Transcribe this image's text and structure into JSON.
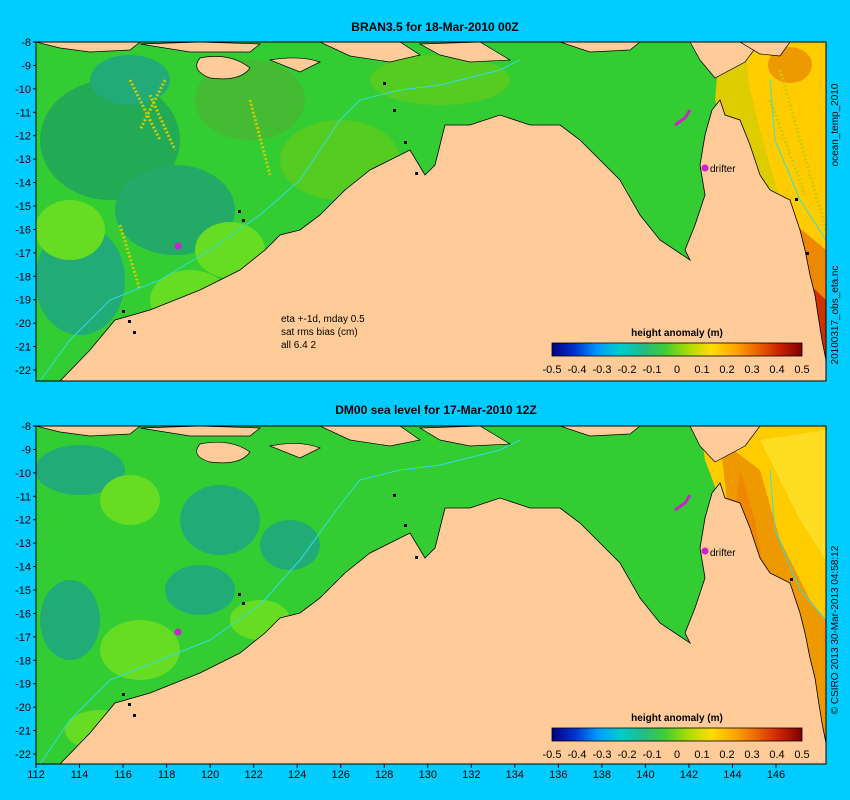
{
  "colors": {
    "background": "#00ccff",
    "land": "#ffcc99",
    "ocean_base": "#33cc33",
    "ocean_light": "#66dd22",
    "ocean_dark": "#22aa55",
    "ocean_teal": "#22aa88",
    "shelf_contour": "#33dddd",
    "track_yellow": "#cccc00",
    "drifter_magenta": "#cc22cc",
    "warm_yellow": "#ffdd00",
    "warm_orange": "#ee8800",
    "warm_red": "#cc3300",
    "outline": "#000000"
  },
  "colorbar": {
    "label": "height anomaly (m)",
    "ticks": [
      "-0.5",
      "-0.4",
      "-0.3",
      "-0.2",
      "-0.1",
      "0",
      "0.1",
      "0.2",
      "0.3",
      "0.4",
      "0.5"
    ],
    "stops": [
      "#000080",
      "#0033cc",
      "#0099ff",
      "#00cccc",
      "#22bb88",
      "#44cc33",
      "#aadd00",
      "#ffdd00",
      "#ffaa00",
      "#ee6600",
      "#cc2200",
      "#800000"
    ]
  },
  "x_ticks": [
    "112",
    "114",
    "116",
    "118",
    "120",
    "122",
    "124",
    "126",
    "128",
    "130",
    "132",
    "134",
    "136",
    "138",
    "140",
    "142",
    "144",
    "146"
  ],
  "y_ticks": [
    "-8",
    "-9",
    "-10",
    "-11",
    "-12",
    "-13",
    "-14",
    "-15",
    "-16",
    "-17",
    "-18",
    "-19",
    "-20",
    "-21",
    "-22"
  ],
  "top_panel": {
    "title": "BRAN3.5 for 18-Mar-2010 00Z",
    "side_label": "ocean_temp_2010",
    "side_label_lower": "20100317_obs_eta.nc",
    "annotation": [
      "eta +-1d, mday 0.5",
      "sat rms bias (cm)",
      "all 6.4 2"
    ],
    "drifter_label": "drifter"
  },
  "bottom_panel": {
    "title": "DM00 sea level  for 17-Mar-2010 12Z",
    "side_label": "© CSIRO 2013  30-Mar-2013 04:58:12",
    "drifter_label": "drifter"
  }
}
